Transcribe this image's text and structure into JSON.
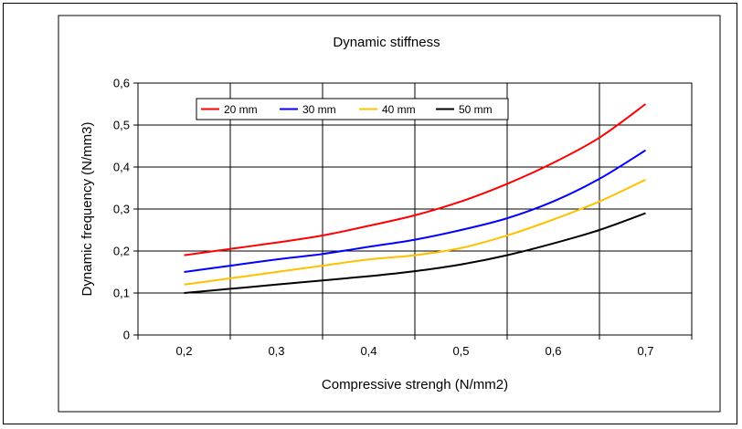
{
  "chart_data": {
    "type": "line",
    "title": "Dynamic stiffness",
    "xlabel": "Compressive strengh (N/mm2)",
    "ylabel": "Dynamic frequency (N/mm3)",
    "xlim": [
      0.15,
      0.75
    ],
    "ylim": [
      0,
      0.6
    ],
    "xticks": [
      "0,2",
      "0,3",
      "0,4",
      "0,5",
      "0,6",
      "0,7"
    ],
    "yticks": [
      "0",
      "0,1",
      "0,2",
      "0,3",
      "0,4",
      "0,5",
      "0,6"
    ],
    "grid": true,
    "legend_position": "top-left",
    "series": [
      {
        "name": "20 mm",
        "color": "#ff0000",
        "x": [
          0.2,
          0.25,
          0.3,
          0.35,
          0.4,
          0.45,
          0.5,
          0.55,
          0.6,
          0.65,
          0.7
        ],
        "y": [
          0.19,
          0.205,
          0.22,
          0.237,
          0.26,
          0.285,
          0.318,
          0.36,
          0.41,
          0.47,
          0.55
        ]
      },
      {
        "name": "30 mm",
        "color": "#0000ff",
        "x": [
          0.2,
          0.25,
          0.3,
          0.35,
          0.4,
          0.45,
          0.5,
          0.55,
          0.6,
          0.65,
          0.7
        ],
        "y": [
          0.15,
          0.165,
          0.18,
          0.193,
          0.21,
          0.227,
          0.25,
          0.278,
          0.318,
          0.372,
          0.44
        ]
      },
      {
        "name": "40 mm",
        "color": "#ffc000",
        "x": [
          0.2,
          0.25,
          0.3,
          0.35,
          0.4,
          0.45,
          0.5,
          0.55,
          0.6,
          0.65,
          0.7
        ],
        "y": [
          0.12,
          0.135,
          0.15,
          0.165,
          0.18,
          0.19,
          0.207,
          0.237,
          0.275,
          0.318,
          0.37
        ]
      },
      {
        "name": "50 mm",
        "color": "#000000",
        "x": [
          0.2,
          0.25,
          0.3,
          0.35,
          0.4,
          0.45,
          0.5,
          0.55,
          0.6,
          0.65,
          0.7
        ],
        "y": [
          0.1,
          0.11,
          0.12,
          0.13,
          0.14,
          0.152,
          0.168,
          0.19,
          0.218,
          0.25,
          0.29
        ]
      }
    ]
  }
}
